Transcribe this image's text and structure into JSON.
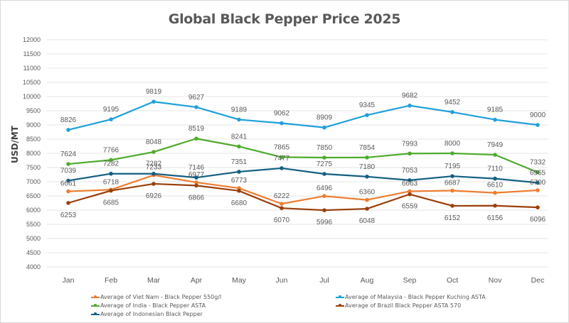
{
  "chart_data": {
    "type": "line",
    "title": "Global Black Pepper Price 2025",
    "xlabel": "",
    "ylabel": "USD/MT",
    "categories": [
      "Jan",
      "Feb",
      "Mar",
      "Apr",
      "May",
      "Jun",
      "Jul",
      "Aug",
      "Sep",
      "Oct",
      "Nov",
      "Dec"
    ],
    "ylim": [
      4000,
      12000
    ],
    "yticks": [
      4000,
      4500,
      5000,
      5500,
      6000,
      6500,
      7000,
      7500,
      8000,
      8500,
      9000,
      9500,
      10000,
      10500,
      11000,
      11500,
      12000
    ],
    "grid": true,
    "legend_position": "bottom",
    "series": [
      {
        "name": "Average of Viet Nam - Black Pepper 550g/l",
        "color": "#ed7d31",
        "values": [
          6661,
          6718,
          7233,
          6977,
          6773,
          6222,
          6496,
          6360,
          6663,
          6687,
          6610,
          6700
        ]
      },
      {
        "name": "Average of Malaysia - Black Pepper Kuching ASTA",
        "color": "#1fa0db",
        "values": [
          8826,
          9195,
          9819,
          9627,
          9189,
          9062,
          8909,
          9345,
          9682,
          9452,
          9185,
          9000
        ]
      },
      {
        "name": "Average of India - Black Pepper ASTA",
        "color": "#4eab2e",
        "values": [
          7624,
          7766,
          8048,
          8519,
          8241,
          7865,
          7850,
          7854,
          7993,
          8000,
          7949,
          7332
        ]
      },
      {
        "name": "Average of Brazil Black Pepper ASTA 570",
        "color": "#9b3f0c",
        "values": [
          6253,
          6685,
          6926,
          6866,
          6680,
          6070,
          5996,
          6048,
          6559,
          6152,
          6156,
          6096
        ]
      },
      {
        "name": "Average of Indonesian Black Pepper",
        "color": "#145f82",
        "values": [
          7039,
          7282,
          7282,
          7146,
          7351,
          7477,
          7275,
          7180,
          7053,
          7195,
          7110,
          6965
        ]
      }
    ]
  }
}
